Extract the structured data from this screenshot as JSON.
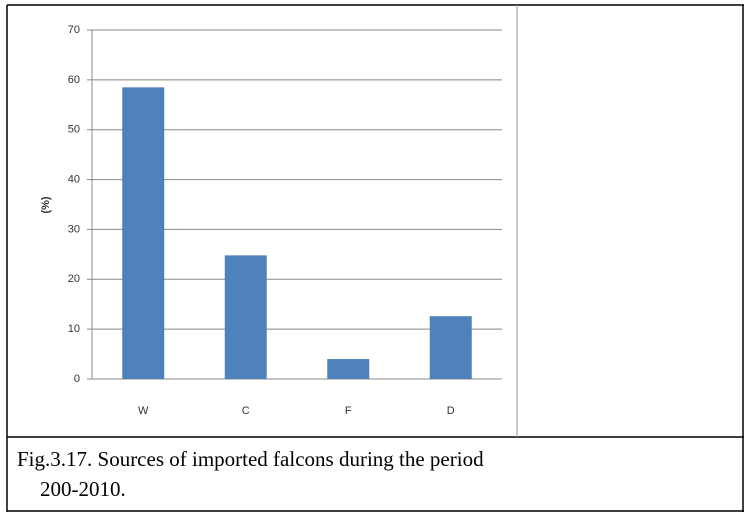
{
  "chart_data": {
    "type": "bar",
    "ylabel": "(%)",
    "categories": [
      "W",
      "C",
      "F",
      "D"
    ],
    "values": [
      58.5,
      24.8,
      4,
      12.6
    ],
    "color": "#4f81bd",
    "ylim": [
      0,
      70
    ],
    "yticks": [
      0,
      10,
      20,
      30,
      40,
      50,
      60,
      70
    ],
    "grid": true
  },
  "caption": [
    "Fig.3.17. Sources of imported  falcons  during the period",
    "200-2010."
  ]
}
